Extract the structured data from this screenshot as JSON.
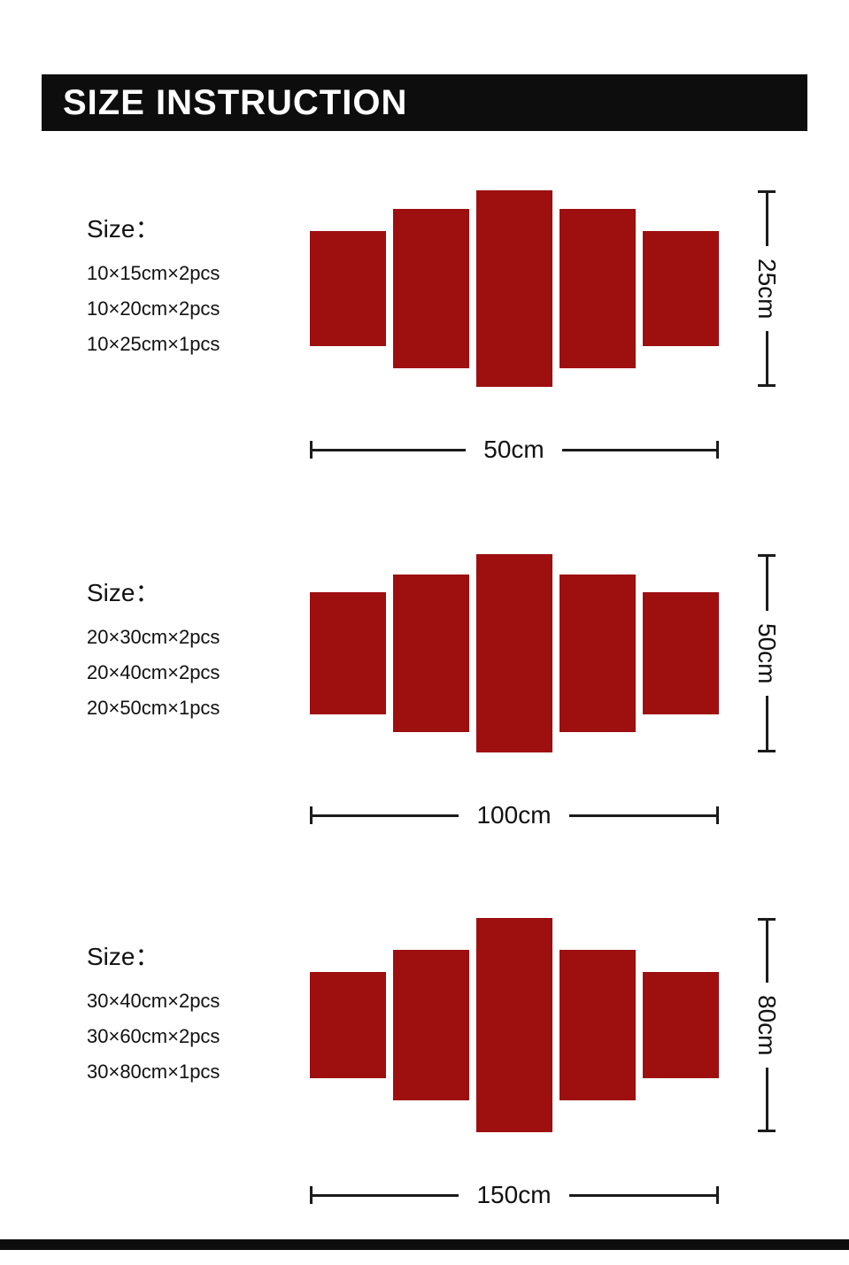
{
  "colors": {
    "panel_red": "#9e0f10",
    "header_bg": "#0d0d0d",
    "header_text": "#ffffff",
    "line_black": "#1b1b1b"
  },
  "header": {
    "title": "SIZE INSTRUCTION"
  },
  "sections": [
    {
      "size_label": "Size：",
      "items": [
        "10×15cm×2pcs",
        "10×20cm×2pcs",
        "10×25cm×1pcs"
      ],
      "height_label": "25cm",
      "width_label": "50cm"
    },
    {
      "size_label": "Size：",
      "items": [
        "20×30cm×2pcs",
        "20×40cm×2pcs",
        "20×50cm×1pcs"
      ],
      "height_label": "50cm",
      "width_label": "100cm"
    },
    {
      "size_label": "Size：",
      "items": [
        "30×40cm×2pcs",
        "30×60cm×2pcs",
        "30×80cm×1pcs"
      ],
      "height_label": "80cm",
      "width_label": "150cm"
    }
  ]
}
